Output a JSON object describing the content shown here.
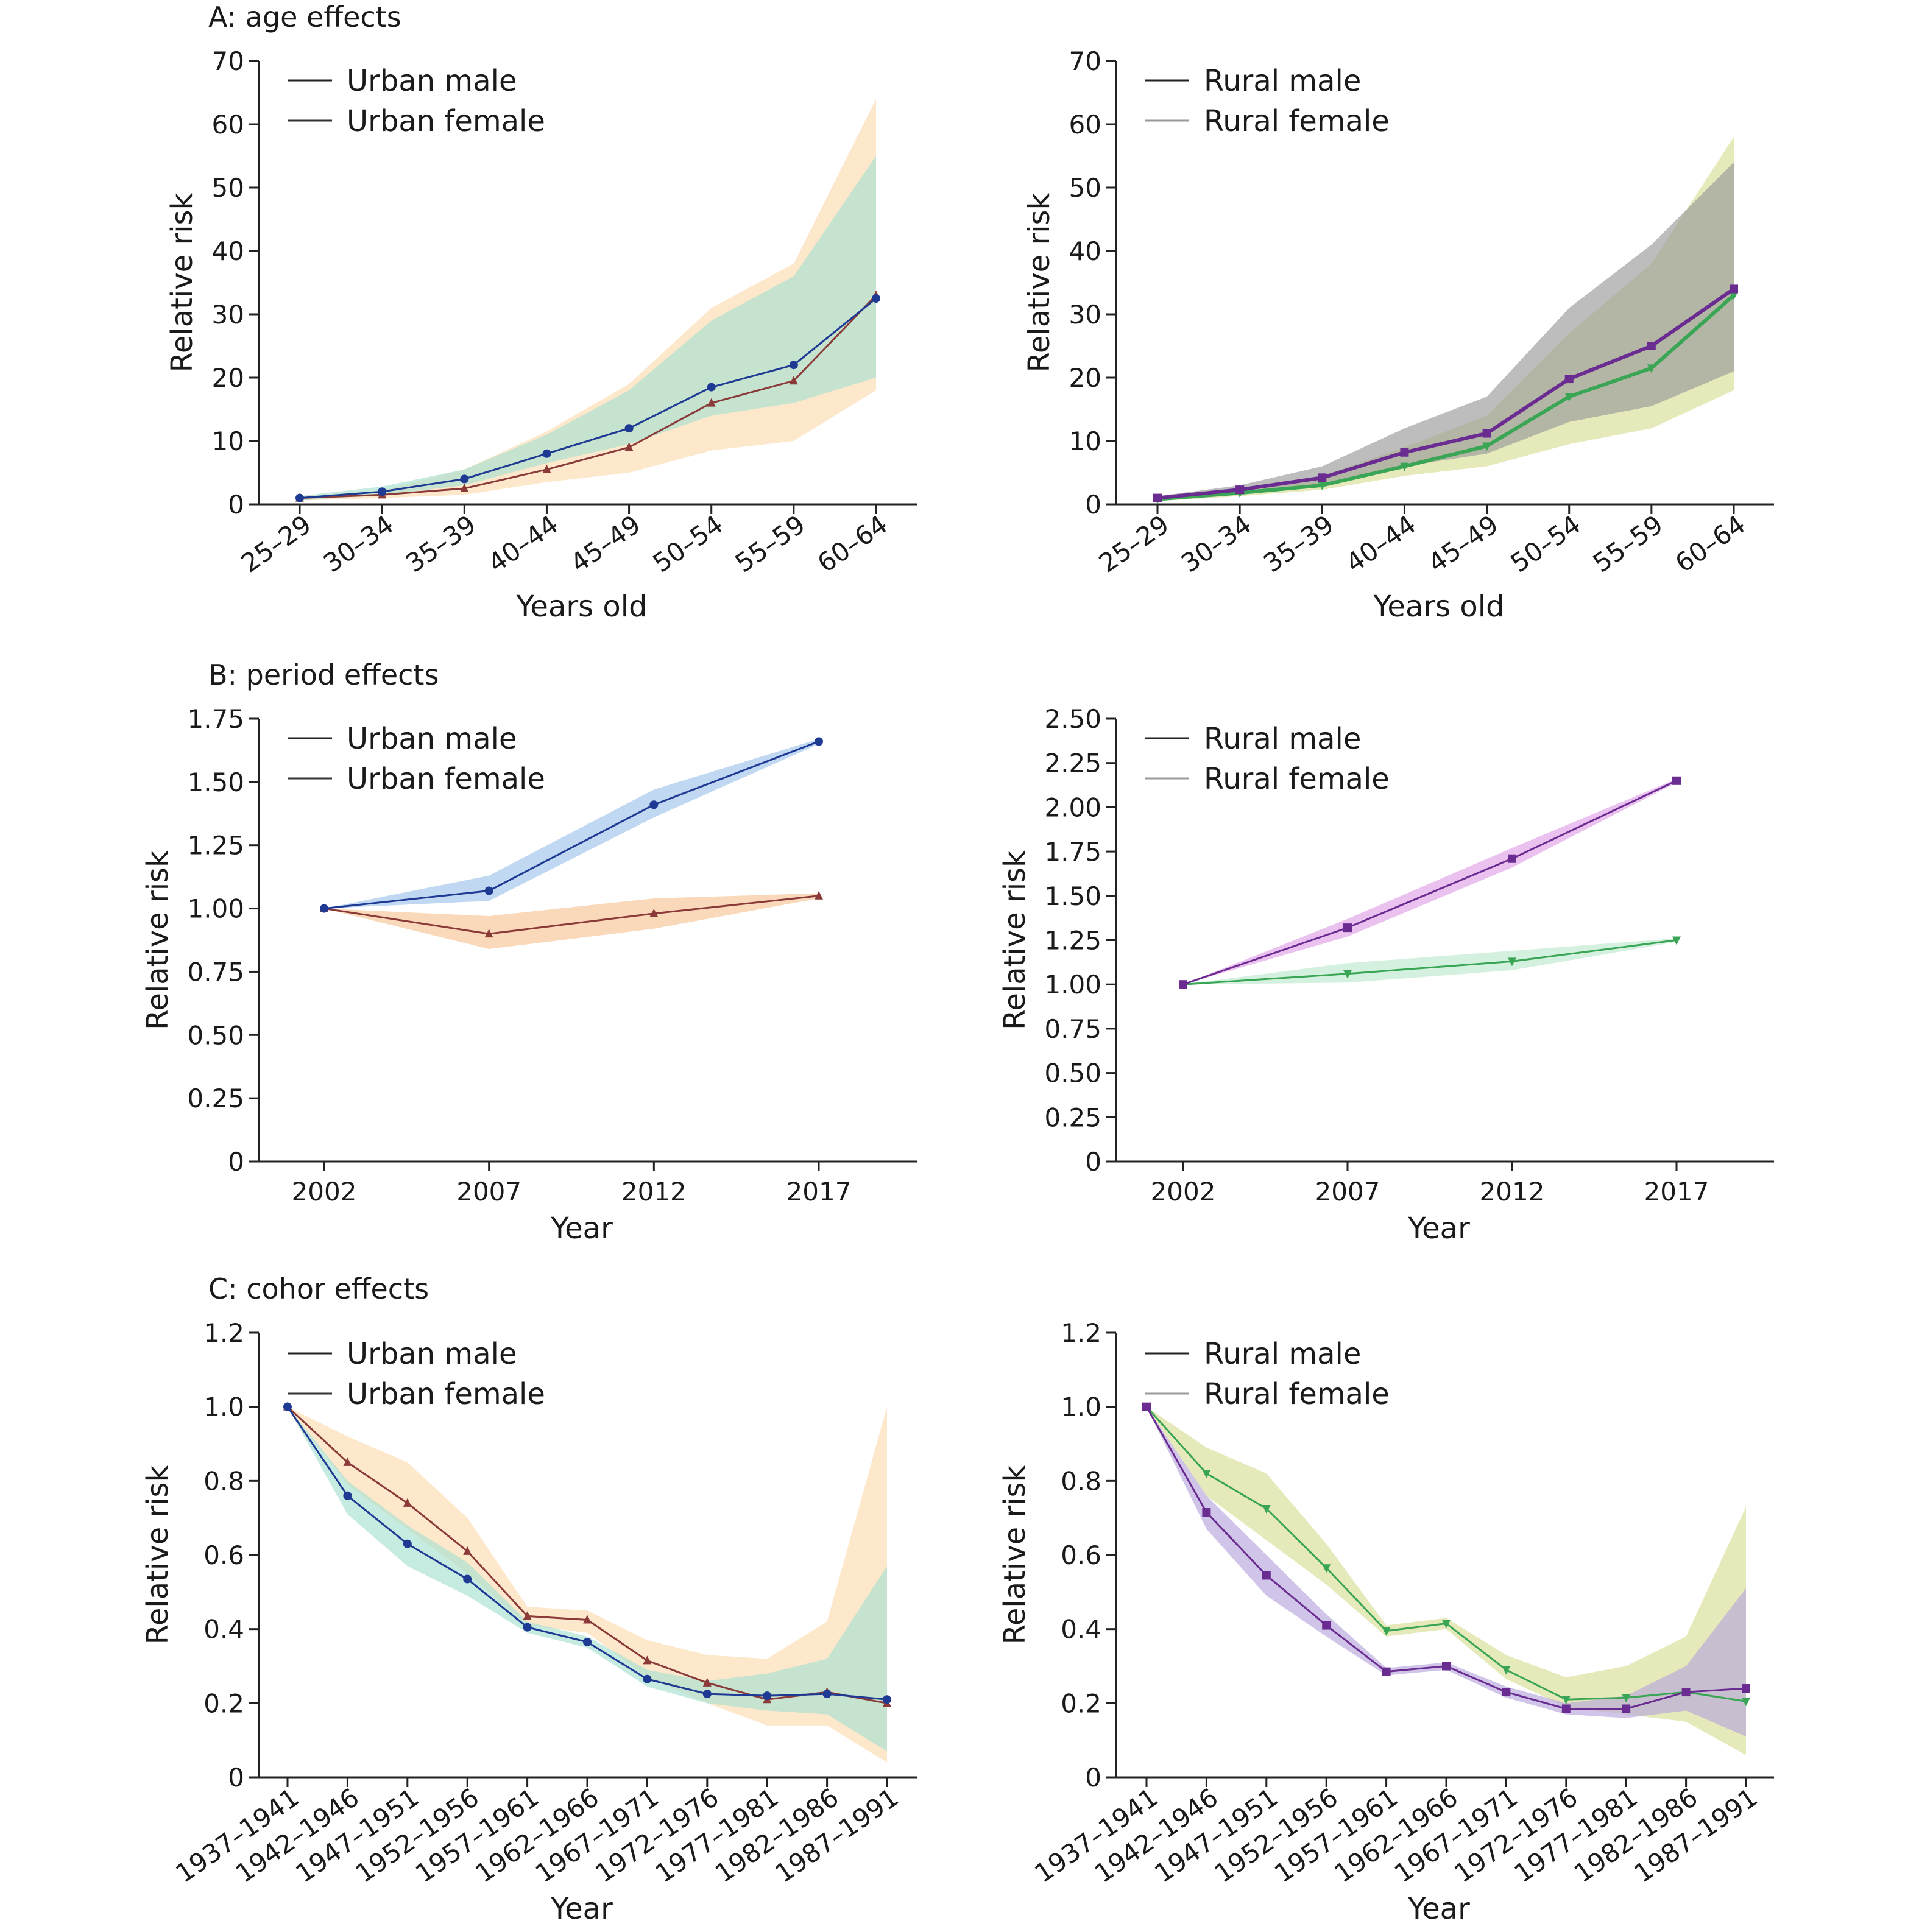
{
  "sections": [
    "A: age effects",
    "B: period effects",
    "C: cohor effects"
  ],
  "colors": {
    "urban_male": "#1f3a93",
    "urban_female": "#8b3a3a",
    "rural_male": "#6a2c91",
    "rural_female": "#3aa655",
    "urban_male_band": "#a8e0d0",
    "urban_female_band": "#fcd9a8",
    "rural_male_band": "#9a9a9a",
    "rural_female_band": "#d6dc8c",
    "period_um_band": "#9ec3ea",
    "period_uf_band": "#f5c08a",
    "period_rm_band": "#e0a0e6",
    "period_rf_band": "#b8e6c8",
    "cohort_rm_band": "#b7a6dc"
  },
  "chart_data": [
    {
      "id": "A-urban",
      "type": "line",
      "xlabel": "Years old",
      "ylabel": "Relative risk",
      "categories": [
        "25–29",
        "30–34",
        "35–39",
        "40–44",
        "45–49",
        "50–54",
        "55–59",
        "60–64"
      ],
      "ylim": [
        0,
        70
      ],
      "yticks": [
        "0",
        "10",
        "20",
        "30",
        "40",
        "50",
        "60",
        "70"
      ],
      "legend": [
        "Urban male",
        "Urban female"
      ],
      "series": [
        {
          "name": "Urban male",
          "marker": "circle",
          "values": [
            1,
            2,
            4,
            8,
            12,
            18.5,
            22,
            32.5
          ],
          "lower": [
            0.6,
            1.5,
            3,
            6.5,
            9.5,
            14,
            16,
            20
          ],
          "upper": [
            1.3,
            2.8,
            5.5,
            11,
            18,
            29,
            36,
            55
          ]
        },
        {
          "name": "Urban female",
          "marker": "triangle",
          "values": [
            1,
            1.5,
            2.5,
            5.5,
            9,
            16,
            19.5,
            33
          ],
          "lower": [
            0.6,
            1,
            1.5,
            3.5,
            5,
            8.5,
            10,
            18
          ],
          "upper": [
            1.3,
            2.2,
            5.5,
            11.5,
            19,
            31,
            38,
            64
          ]
        }
      ]
    },
    {
      "id": "A-rural",
      "type": "line",
      "xlabel": "Years old",
      "ylabel": "Relative risk",
      "categories": [
        "25–29",
        "30–34",
        "35–39",
        "40–44",
        "45–49",
        "50–54",
        "55–59",
        "60–64"
      ],
      "ylim": [
        0,
        70
      ],
      "yticks": [
        "0",
        "10",
        "20",
        "30",
        "40",
        "50",
        "60",
        "70"
      ],
      "legend": [
        "Rural male",
        "Rural female"
      ],
      "series": [
        {
          "name": "Rural male",
          "marker": "square",
          "values": [
            1,
            2.3,
            4.2,
            8.2,
            11.2,
            19.8,
            25,
            34
          ],
          "lower": [
            0.6,
            1.6,
            3,
            6,
            8,
            13,
            15.5,
            21
          ],
          "upper": [
            1.3,
            3,
            6,
            12,
            17,
            31,
            41,
            54
          ]
        },
        {
          "name": "Rural female",
          "marker": "triangle-down",
          "values": [
            0.8,
            1.8,
            3,
            6,
            9.2,
            17,
            21.5,
            33
          ],
          "lower": [
            0.5,
            1.3,
            2.3,
            4.5,
            6,
            9.5,
            12,
            18
          ],
          "upper": [
            1.2,
            2.5,
            4.5,
            9,
            14,
            27,
            38,
            58
          ]
        }
      ]
    },
    {
      "id": "B-urban",
      "type": "line",
      "xlabel": "Year",
      "ylabel": "Relative risk",
      "categories": [
        "2002",
        "2007",
        "2012",
        "2017"
      ],
      "ylim": [
        0,
        1.75
      ],
      "yticks": [
        "0",
        "0.25",
        "0.50",
        "0.75",
        "1.00",
        "1.25",
        "1.50",
        "1.75"
      ],
      "legend": [
        "Urban male",
        "Urban female"
      ],
      "series": [
        {
          "name": "Urban male",
          "marker": "circle",
          "values": [
            1.0,
            1.07,
            1.41,
            1.66
          ],
          "lower": [
            1.0,
            1.03,
            1.36,
            1.65
          ],
          "upper": [
            1.0,
            1.13,
            1.47,
            1.67
          ]
        },
        {
          "name": "Urban female",
          "marker": "triangle",
          "values": [
            1.0,
            0.9,
            0.98,
            1.05
          ],
          "lower": [
            1.0,
            0.84,
            0.92,
            1.04
          ],
          "upper": [
            1.0,
            0.97,
            1.04,
            1.06
          ]
        }
      ]
    },
    {
      "id": "B-rural",
      "type": "line",
      "xlabel": "Year",
      "ylabel": "Relative risk",
      "categories": [
        "2002",
        "2007",
        "2012",
        "2017"
      ],
      "ylim": [
        0,
        2.5
      ],
      "yticks": [
        "0",
        "0.25",
        "0.50",
        "0.75",
        "1.00",
        "1.25",
        "1.50",
        "1.75",
        "2.00",
        "2.25",
        "2.50"
      ],
      "legend": [
        "Rural male",
        "Rural female"
      ],
      "series": [
        {
          "name": "Rural male",
          "marker": "square",
          "values": [
            1.0,
            1.32,
            1.71,
            2.15
          ],
          "lower": [
            1.0,
            1.27,
            1.66,
            2.14
          ],
          "upper": [
            1.0,
            1.37,
            1.77,
            2.16
          ]
        },
        {
          "name": "Rural female",
          "marker": "triangle-down",
          "values": [
            1.0,
            1.06,
            1.13,
            1.25
          ],
          "lower": [
            1.0,
            1.01,
            1.08,
            1.24
          ],
          "upper": [
            1.0,
            1.12,
            1.19,
            1.26
          ]
        }
      ]
    },
    {
      "id": "C-urban",
      "type": "line",
      "xlabel": "Year",
      "ylabel": "Relative risk",
      "categories": [
        "1937–1941",
        "1942–1946",
        "1947–1951",
        "1952–1956",
        "1957–1961",
        "1962–1966",
        "1967–1971",
        "1972–1976",
        "1977–1981",
        "1982–1986",
        "1987–1991"
      ],
      "ylim": [
        0,
        1.2
      ],
      "yticks": [
        "0",
        "0.2",
        "0.4",
        "0.6",
        "0.8",
        "1.0",
        "1.2"
      ],
      "legend": [
        "Urban male",
        "Urban female"
      ],
      "series": [
        {
          "name": "Urban male",
          "marker": "circle",
          "values": [
            1.0,
            0.76,
            0.63,
            0.535,
            0.405,
            0.365,
            0.265,
            0.225,
            0.22,
            0.225,
            0.21
          ],
          "lower": [
            1.0,
            0.71,
            0.57,
            0.49,
            0.39,
            0.35,
            0.245,
            0.2,
            0.18,
            0.17,
            0.07
          ],
          "upper": [
            1.0,
            0.8,
            0.68,
            0.58,
            0.42,
            0.38,
            0.29,
            0.26,
            0.28,
            0.32,
            0.57
          ]
        },
        {
          "name": "Urban female",
          "marker": "triangle",
          "values": [
            1.0,
            0.85,
            0.74,
            0.61,
            0.435,
            0.425,
            0.315,
            0.255,
            0.21,
            0.23,
            0.2
          ],
          "lower": [
            1.0,
            0.79,
            0.67,
            0.55,
            0.41,
            0.39,
            0.27,
            0.2,
            0.14,
            0.14,
            0.04
          ],
          "upper": [
            1.0,
            0.92,
            0.85,
            0.7,
            0.46,
            0.45,
            0.37,
            0.33,
            0.32,
            0.42,
            1.0
          ]
        }
      ]
    },
    {
      "id": "C-rural",
      "type": "line",
      "xlabel": "Year",
      "ylabel": "Relative risk",
      "categories": [
        "1937–1941",
        "1942–1946",
        "1947–1951",
        "1952–1956",
        "1957–1961",
        "1962–1966",
        "1967–1971",
        "1972–1976",
        "1977–1981",
        "1982–1986",
        "1987–1991"
      ],
      "ylim": [
        0,
        1.2
      ],
      "yticks": [
        "0",
        "0.2",
        "0.4",
        "0.6",
        "0.8",
        "1.0",
        "1.2"
      ],
      "legend": [
        "Rural male",
        "Rural female"
      ],
      "series": [
        {
          "name": "Rural male",
          "marker": "square",
          "values": [
            1.0,
            0.715,
            0.545,
            0.41,
            0.285,
            0.3,
            0.23,
            0.185,
            0.185,
            0.23,
            0.24
          ],
          "lower": [
            1.0,
            0.67,
            0.49,
            0.38,
            0.275,
            0.29,
            0.215,
            0.17,
            0.16,
            0.18,
            0.11
          ],
          "upper": [
            1.0,
            0.76,
            0.6,
            0.44,
            0.295,
            0.31,
            0.245,
            0.2,
            0.22,
            0.3,
            0.51
          ]
        },
        {
          "name": "Rural female",
          "marker": "triangle-down",
          "values": [
            1.0,
            0.82,
            0.725,
            0.565,
            0.395,
            0.415,
            0.29,
            0.21,
            0.215,
            0.23,
            0.205
          ],
          "lower": [
            1.0,
            0.76,
            0.64,
            0.52,
            0.38,
            0.4,
            0.265,
            0.19,
            0.17,
            0.15,
            0.06
          ],
          "upper": [
            1.0,
            0.89,
            0.82,
            0.63,
            0.41,
            0.43,
            0.33,
            0.27,
            0.3,
            0.38,
            0.73
          ]
        }
      ]
    }
  ]
}
